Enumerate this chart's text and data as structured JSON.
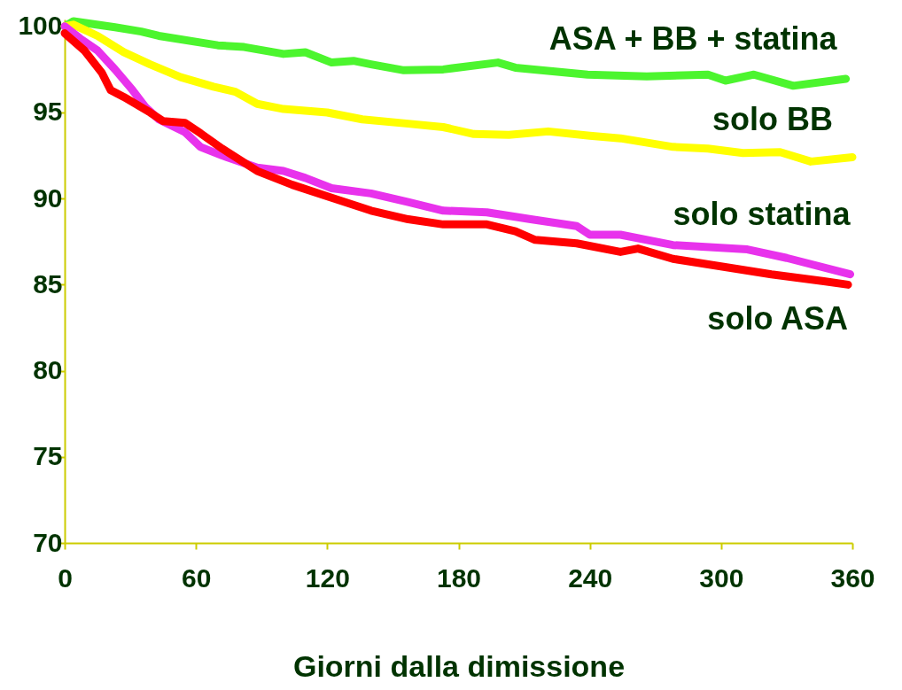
{
  "chart_data": {
    "type": "line",
    "xlabel": "Giorni dalla dimissione",
    "xlim": [
      0,
      360
    ],
    "xticks": [
      0,
      60,
      120,
      180,
      240,
      300,
      360
    ],
    "ylim": [
      70,
      100.4
    ],
    "yticks": [
      70,
      75,
      80,
      85,
      90,
      95,
      100
    ],
    "grid": false,
    "marker": "none",
    "line_style": "solid",
    "series": [
      {
        "name": "ASA + BB + statina",
        "color": "#4cf52e",
        "x": [
          0,
          4,
          23,
          35,
          43,
          70,
          82,
          100,
          110,
          122,
          132,
          140,
          155,
          173,
          198,
          206,
          239,
          266,
          294,
          302,
          315,
          333,
          357
        ],
        "values": [
          100,
          100.3,
          99.95,
          99.7,
          99.45,
          98.9,
          98.8,
          98.4,
          98.5,
          97.9,
          98.0,
          97.8,
          97.45,
          97.5,
          97.9,
          97.6,
          97.2,
          97.1,
          97.2,
          96.85,
          97.2,
          96.55,
          96.95
        ]
      },
      {
        "name": "solo BB",
        "color": "#ffff00",
        "x": [
          0,
          4,
          15,
          27,
          39,
          53,
          68,
          78,
          88,
          100,
          120,
          136,
          157,
          173,
          187,
          203,
          221,
          240,
          254,
          278,
          294,
          310,
          327,
          341,
          360
        ],
        "values": [
          100,
          100.1,
          99.45,
          98.5,
          97.8,
          97.05,
          96.5,
          96.2,
          95.5,
          95.2,
          95.0,
          94.6,
          94.35,
          94.15,
          93.75,
          93.7,
          93.9,
          93.65,
          93.5,
          93.0,
          92.9,
          92.65,
          92.7,
          92.15,
          92.4
        ]
      },
      {
        "name": "solo statina",
        "color": "#e832ec",
        "x": [
          0,
          7,
          15,
          23,
          31,
          37,
          43,
          55,
          62,
          72,
          88,
          100,
          110,
          122,
          140,
          157,
          173,
          193,
          213,
          234,
          240,
          254,
          278,
          312,
          330,
          359
        ],
        "values": [
          100,
          99.3,
          98.6,
          97.5,
          96.3,
          95.3,
          94.6,
          93.85,
          93.0,
          92.5,
          91.8,
          91.6,
          91.2,
          90.6,
          90.3,
          89.8,
          89.3,
          89.2,
          88.8,
          88.4,
          87.9,
          87.9,
          87.3,
          87.05,
          86.55,
          85.6
        ]
      },
      {
        "name": "solo ASA",
        "color": "#ff0000",
        "x": [
          0,
          9,
          17,
          21,
          27,
          39,
          45,
          55,
          62,
          72,
          88,
          104,
          122,
          140,
          157,
          173,
          193,
          206,
          215,
          234,
          254,
          262,
          278,
          298,
          323,
          347,
          358
        ],
        "values": [
          99.6,
          98.6,
          97.3,
          96.3,
          95.9,
          95.0,
          94.5,
          94.4,
          93.8,
          92.9,
          91.6,
          90.8,
          90.05,
          89.3,
          88.8,
          88.5,
          88.5,
          88.1,
          87.6,
          87.4,
          86.9,
          87.1,
          86.5,
          86.1,
          85.6,
          85.2,
          85.0
        ]
      }
    ]
  }
}
